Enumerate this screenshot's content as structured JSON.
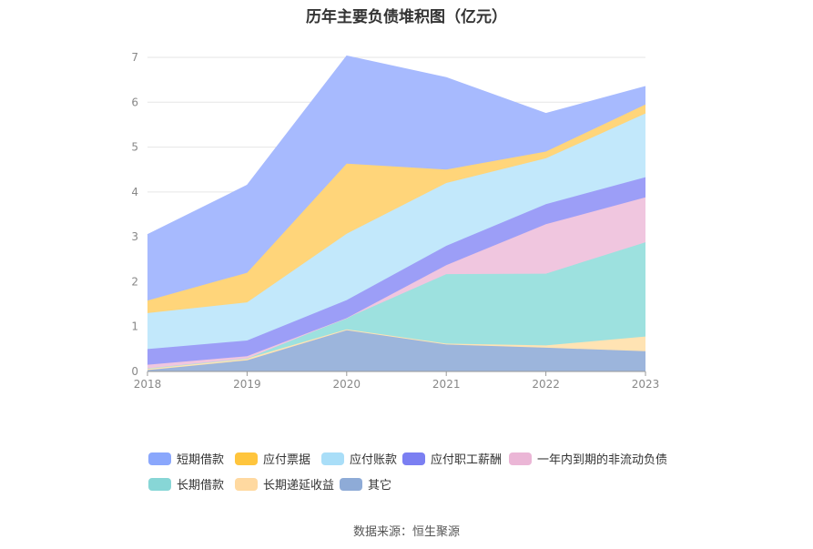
{
  "chart_data": {
    "type": "area",
    "stacked": true,
    "title": "历年主要负债堆积图（亿元）",
    "x": [
      "2018",
      "2019",
      "2020",
      "2021",
      "2022",
      "2023"
    ],
    "ylim": [
      0,
      7
    ],
    "yticks": [
      "0",
      "1",
      "2",
      "3",
      "4",
      "5",
      "6",
      "7"
    ],
    "grid": true,
    "legend_position": "bottom",
    "series": [
      {
        "name": "其它",
        "color": "#9cb5dc",
        "values": [
          0.03,
          0.25,
          0.92,
          0.6,
          0.53,
          0.45
        ]
      },
      {
        "name": "长期递延收益",
        "color": "#ffe3b3",
        "values": [
          0.04,
          0.04,
          0.02,
          0.02,
          0.05,
          0.33
        ]
      },
      {
        "name": "长期借款",
        "color": "#9de1df",
        "values": [
          0.0,
          0.0,
          0.25,
          1.55,
          1.6,
          2.1
        ]
      },
      {
        "name": "一年内到期的非流动负债",
        "color": "#f0c6df",
        "values": [
          0.08,
          0.05,
          0.0,
          0.2,
          1.1,
          1.0
        ]
      },
      {
        "name": "应付职工薪酬",
        "color": "#9c9ef7",
        "values": [
          0.35,
          0.35,
          0.4,
          0.43,
          0.45,
          0.45
        ]
      },
      {
        "name": "应付账款",
        "color": "#c2e8fb",
        "values": [
          0.8,
          0.85,
          1.48,
          1.4,
          1.02,
          1.42
        ]
      },
      {
        "name": "应付票据",
        "color": "#ffd57a",
        "values": [
          0.28,
          0.66,
          1.56,
          0.3,
          0.15,
          0.2
        ]
      },
      {
        "name": "短期借款",
        "color": "#a7bafe",
        "values": [
          1.47,
          1.95,
          2.4,
          2.05,
          0.85,
          0.4
        ]
      }
    ]
  },
  "legend": [
    {
      "name": "短期借款",
      "color": "#8aa7fc"
    },
    {
      "name": "应付票据",
      "color": "#ffc53d"
    },
    {
      "name": "应付账款",
      "color": "#a9def8"
    },
    {
      "name": "应付职工薪酬",
      "color": "#7b7ff2"
    },
    {
      "name": "一年内到期的非流动负债",
      "color": "#ebb6d6"
    },
    {
      "name": "长期借款",
      "color": "#87d6d6"
    },
    {
      "name": "长期递延收益",
      "color": "#ffd9a0"
    },
    {
      "name": "其它",
      "color": "#8eabd7"
    }
  ],
  "source": "数据来源：恒生聚源"
}
